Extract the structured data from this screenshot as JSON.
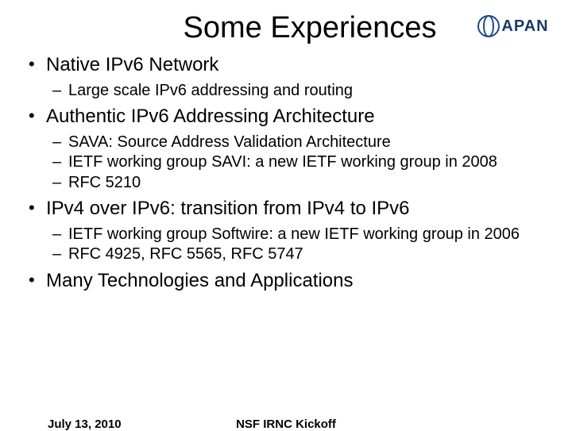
{
  "title": "Some Experiences",
  "logo": {
    "text": "APAN",
    "color": "#1a3a6a"
  },
  "bullets": [
    {
      "text": "Native IPv6 Network",
      "sub": [
        "Large scale IPv6 addressing and routing"
      ]
    },
    {
      "text": "Authentic IPv6 Addressing Architecture",
      "sub": [
        "SAVA: Source Address Validation Architecture",
        "IETF working group SAVI: a new IETF working group in 2008",
        "RFC 5210"
      ]
    },
    {
      "text": "IPv4 over IPv6: transition from IPv4 to IPv6",
      "sub": [
        "IETF working group Softwire: a new IETF working group in 2006",
        "RFC 4925, RFC 5565, RFC 5747"
      ]
    },
    {
      "text": "Many Technologies and Applications",
      "sub": []
    }
  ],
  "footer": {
    "date": "July 13, 2010",
    "event": "NSF IRNC Kickoff"
  },
  "colors": {
    "background": "#ffffff",
    "text": "#000000"
  },
  "typography": {
    "title_fontsize": 38,
    "level1_fontsize": 24,
    "level2_fontsize": 20,
    "footer_fontsize": 15,
    "font_family": "Arial"
  }
}
